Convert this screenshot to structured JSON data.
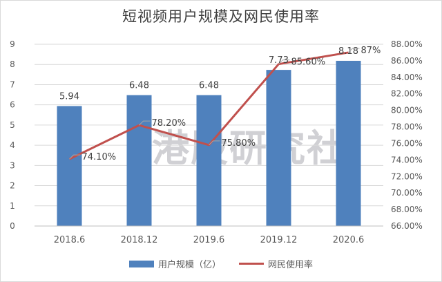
{
  "chart_data": {
    "type": "bar",
    "title": "短视频用户规模及网民使用率",
    "categories": [
      "2018.6",
      "2018.12",
      "2019.6",
      "2019.12",
      "2020.6"
    ],
    "series": [
      {
        "name": "用户规模（亿）",
        "type": "bar",
        "axis": "left",
        "values": [
          5.94,
          6.48,
          6.48,
          7.73,
          8.18
        ],
        "labels": [
          "5.94",
          "6.48",
          "6.48",
          "7.73",
          "8.18"
        ],
        "color": "#4f81bd"
      },
      {
        "name": "网民使用率",
        "type": "line",
        "axis": "right",
        "values": [
          74.1,
          78.2,
          75.8,
          85.6,
          87.0
        ],
        "labels": [
          "74.10%",
          "78.20%",
          "75.80%",
          "85.60%",
          "87%"
        ],
        "color": "#c0504d"
      }
    ],
    "y_left": {
      "min": 0,
      "max": 9,
      "ticks": [
        "0",
        "1",
        "2",
        "3",
        "4",
        "5",
        "6",
        "7",
        "8",
        "9"
      ]
    },
    "y_right": {
      "min": 66,
      "max": 88,
      "ticks": [
        "66.00%",
        "68.00%",
        "70.00%",
        "72.00%",
        "74.00%",
        "76.00%",
        "78.00%",
        "80.00%",
        "82.00%",
        "84.00%",
        "86.00%",
        "88.00%"
      ]
    },
    "grid": true,
    "legend_position": "bottom"
  },
  "watermark": "港股研究社"
}
